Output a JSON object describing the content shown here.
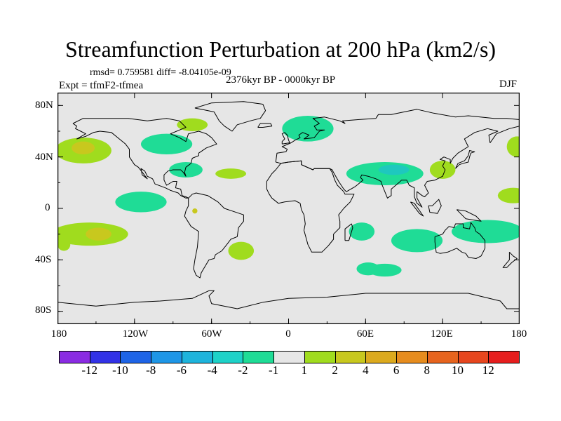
{
  "title": "Streamfunction Perturbation at 200 hPa (km2/s)",
  "stats": "rmsd= 0.759581 diff= -8.04105e-09",
  "experiment": "Expt = tfmF2-tfmea",
  "period": "2376kyr BP - 0000kyr BP",
  "season": "DJF",
  "lat_labels": [
    "80N",
    "40N",
    "0",
    "40S",
    "80S"
  ],
  "lon_labels": [
    "180",
    "120W",
    "60W",
    "0",
    "60E",
    "120E",
    "180"
  ],
  "colors": {
    "background": "#e6e6e6",
    "coast": "#000000",
    "neg1": "#1fdc96",
    "neg2": "#1ec8be",
    "pos1": "#a0dc1e",
    "pos2": "#c8c81e"
  },
  "colorbar": {
    "colors": [
      "#8a2be2",
      "#3232e6",
      "#1e64e6",
      "#1e96e6",
      "#1eb4dc",
      "#1ed2c8",
      "#1fdc96",
      "#e6e6e6",
      "#a0dc1e",
      "#c8c81e",
      "#dcaa1e",
      "#e68c1e",
      "#e6641e",
      "#e6461e",
      "#e61e1e"
    ],
    "labels": [
      "-12",
      "-10",
      "-8",
      "-6",
      "-4",
      "-2",
      "-1",
      "1",
      "2",
      "4",
      "6",
      "8",
      "10",
      "12"
    ]
  },
  "anomalies": [
    {
      "lon": -160,
      "lat": 45,
      "rx": 22,
      "ry": 10,
      "level": 2
    },
    {
      "lon": -160,
      "lat": 47,
      "rx": 9,
      "ry": 5,
      "level": 4
    },
    {
      "lon": -95,
      "lat": 50,
      "rx": 20,
      "ry": 8,
      "level": -1
    },
    {
      "lon": -75,
      "lat": 65,
      "rx": 12,
      "ry": 5,
      "level": 2
    },
    {
      "lon": -80,
      "lat": 30,
      "rx": 13,
      "ry": 6,
      "level": -1
    },
    {
      "lon": -45,
      "lat": 27,
      "rx": 12,
      "ry": 4,
      "level": 2
    },
    {
      "lon": 15,
      "lat": 62,
      "rx": 20,
      "ry": 10,
      "level": -1
    },
    {
      "lon": 75,
      "lat": 27,
      "rx": 30,
      "ry": 9,
      "level": -1
    },
    {
      "lon": 82,
      "lat": 30,
      "rx": 12,
      "ry": 4,
      "level": -2
    },
    {
      "lon": 120,
      "lat": 30,
      "rx": 10,
      "ry": 7,
      "level": 2
    },
    {
      "lon": 178,
      "lat": 48,
      "rx": 8,
      "ry": 8,
      "level": 2
    },
    {
      "lon": 175,
      "lat": 10,
      "rx": 12,
      "ry": 6,
      "level": 2
    },
    {
      "lon": -115,
      "lat": 5,
      "rx": 20,
      "ry": 8,
      "level": -1
    },
    {
      "lon": -155,
      "lat": -20,
      "rx": 30,
      "ry": 9,
      "level": 2
    },
    {
      "lon": -148,
      "lat": -20,
      "rx": 10,
      "ry": 5,
      "level": 4
    },
    {
      "lon": -175,
      "lat": -28,
      "rx": 5,
      "ry": 5,
      "level": 2
    },
    {
      "lon": -37,
      "lat": -33,
      "rx": 10,
      "ry": 7,
      "level": 2
    },
    {
      "lon": 57,
      "lat": -18,
      "rx": 10,
      "ry": 7,
      "level": -1
    },
    {
      "lon": 100,
      "lat": -25,
      "rx": 20,
      "ry": 9,
      "level": -1
    },
    {
      "lon": 155,
      "lat": -18,
      "rx": 28,
      "ry": 9,
      "level": -1
    },
    {
      "lon": 62,
      "lat": -47,
      "rx": 9,
      "ry": 5,
      "level": -1
    },
    {
      "lon": 75,
      "lat": -48,
      "rx": 13,
      "ry": 5,
      "level": -1
    },
    {
      "lon": -73,
      "lat": -2,
      "rx": 2,
      "ry": 2,
      "level": 4
    }
  ],
  "coastlines": [
    [
      [
        -168,
        66
      ],
      [
        -160,
        70
      ],
      [
        -140,
        70
      ],
      [
        -125,
        70
      ],
      [
        -110,
        68
      ],
      [
        -95,
        70
      ],
      [
        -85,
        68
      ],
      [
        -80,
        63
      ],
      [
        -92,
        58
      ],
      [
        -85,
        55
      ],
      [
        -80,
        52
      ],
      [
        -78,
        58
      ],
      [
        -70,
        60
      ],
      [
        -64,
        58
      ],
      [
        -60,
        55
      ],
      [
        -56,
        50
      ],
      [
        -64,
        47
      ],
      [
        -70,
        43
      ],
      [
        -70,
        41
      ],
      [
        -75,
        39
      ],
      [
        -76,
        35
      ],
      [
        -80,
        32
      ],
      [
        -81,
        28
      ],
      [
        -80,
        25
      ],
      [
        -82,
        28
      ],
      [
        -84,
        30
      ],
      [
        -90,
        30
      ],
      [
        -94,
        29
      ],
      [
        -97,
        26
      ],
      [
        -97,
        22
      ],
      [
        -95,
        18
      ],
      [
        -90,
        21
      ],
      [
        -87,
        21
      ],
      [
        -88,
        16
      ],
      [
        -84,
        15
      ],
      [
        -83,
        10
      ],
      [
        -80,
        9
      ],
      [
        -78,
        8
      ],
      [
        -80,
        8
      ],
      [
        -84,
        10
      ],
      [
        -86,
        12
      ],
      [
        -92,
        14
      ],
      [
        -96,
        16
      ],
      [
        -104,
        19
      ],
      [
        -106,
        23
      ],
      [
        -110,
        25
      ],
      [
        -112,
        29
      ],
      [
        -115,
        31
      ],
      [
        -114,
        26
      ],
      [
        -110,
        23
      ],
      [
        -117,
        32
      ],
      [
        -120,
        34
      ],
      [
        -124,
        40
      ],
      [
        -124,
        46
      ],
      [
        -127,
        50
      ],
      [
        -133,
        55
      ],
      [
        -138,
        59
      ],
      [
        -147,
        60
      ],
      [
        -152,
        59
      ],
      [
        -158,
        56
      ],
      [
        -165,
        54
      ],
      [
        -158,
        58
      ],
      [
        -162,
        60
      ],
      [
        -166,
        62
      ],
      [
        -165,
        64
      ],
      [
        -168,
        66
      ]
    ],
    [
      [
        -73,
        78
      ],
      [
        -60,
        82
      ],
      [
        -35,
        83
      ],
      [
        -20,
        81
      ],
      [
        -18,
        76
      ],
      [
        -22,
        70
      ],
      [
        -30,
        68
      ],
      [
        -40,
        65
      ],
      [
        -44,
        60
      ],
      [
        -50,
        64
      ],
      [
        -54,
        68
      ],
      [
        -58,
        75
      ],
      [
        -68,
        77
      ],
      [
        -73,
        78
      ]
    ],
    [
      [
        -78,
        8
      ],
      [
        -75,
        11
      ],
      [
        -72,
        12
      ],
      [
        -63,
        10
      ],
      [
        -55,
        5
      ],
      [
        -50,
        0
      ],
      [
        -44,
        -2
      ],
      [
        -35,
        -5
      ],
      [
        -35,
        -10
      ],
      [
        -39,
        -15
      ],
      [
        -40,
        -22
      ],
      [
        -45,
        -24
      ],
      [
        -48,
        -28
      ],
      [
        -52,
        -33
      ],
      [
        -57,
        -36
      ],
      [
        -58,
        -39
      ],
      [
        -62,
        -40
      ],
      [
        -65,
        -45
      ],
      [
        -68,
        -50
      ],
      [
        -69,
        -54
      ],
      [
        -72,
        -52
      ],
      [
        -74,
        -47
      ],
      [
        -73,
        -40
      ],
      [
        -71,
        -30
      ],
      [
        -70,
        -18
      ],
      [
        -76,
        -14
      ],
      [
        -81,
        -6
      ],
      [
        -80,
        -2
      ],
      [
        -78,
        2
      ],
      [
        -78,
        8
      ]
    ],
    [
      [
        -10,
        36
      ],
      [
        -9,
        43
      ],
      [
        -2,
        44
      ],
      [
        -1,
        46
      ],
      [
        -5,
        48
      ],
      [
        2,
        51
      ],
      [
        5,
        53
      ],
      [
        9,
        55
      ],
      [
        8,
        57
      ],
      [
        11,
        59
      ],
      [
        16,
        57
      ],
      [
        12,
        54
      ],
      [
        20,
        55
      ],
      [
        24,
        60
      ],
      [
        28,
        61
      ],
      [
        22,
        61
      ],
      [
        20,
        64
      ],
      [
        24,
        66
      ],
      [
        19,
        70
      ],
      [
        28,
        71
      ],
      [
        40,
        68
      ],
      [
        44,
        66
      ],
      [
        42,
        68
      ],
      [
        54,
        69
      ],
      [
        68,
        70
      ],
      [
        70,
        73
      ],
      [
        80,
        73
      ],
      [
        100,
        77
      ],
      [
        113,
        74
      ],
      [
        130,
        71
      ],
      [
        140,
        72
      ],
      [
        160,
        70
      ],
      [
        170,
        70
      ],
      [
        180,
        69
      ],
      [
        180,
        64
      ],
      [
        172,
        62
      ],
      [
        162,
        58
      ],
      [
        157,
        51
      ],
      [
        156,
        57
      ],
      [
        163,
        60
      ],
      [
        155,
        62
      ],
      [
        145,
        59
      ],
      [
        137,
        54
      ],
      [
        140,
        48
      ],
      [
        132,
        43
      ],
      [
        128,
        39
      ],
      [
        126,
        35
      ],
      [
        126,
        38
      ],
      [
        121,
        40
      ],
      [
        118,
        38
      ],
      [
        122,
        37
      ],
      [
        120,
        33
      ],
      [
        122,
        30
      ],
      [
        120,
        25
      ],
      [
        114,
        22
      ],
      [
        108,
        21
      ],
      [
        106,
        18
      ],
      [
        109,
        12
      ],
      [
        106,
        9
      ],
      [
        104,
        10
      ],
      [
        100,
        13
      ],
      [
        100,
        8
      ],
      [
        104,
        1
      ],
      [
        100,
        4
      ],
      [
        98,
        9
      ],
      [
        98,
        16
      ],
      [
        94,
        18
      ],
      [
        92,
        22
      ],
      [
        88,
        22
      ],
      [
        86,
        20
      ],
      [
        80,
        15
      ],
      [
        80,
        10
      ],
      [
        77,
        8
      ],
      [
        73,
        18
      ],
      [
        72,
        21
      ],
      [
        68,
        23
      ],
      [
        62,
        25
      ],
      [
        57,
        26
      ],
      [
        56,
        24
      ],
      [
        58,
        22
      ],
      [
        52,
        17
      ],
      [
        45,
        13
      ],
      [
        43,
        15
      ],
      [
        39,
        21
      ],
      [
        35,
        28
      ],
      [
        34,
        30
      ],
      [
        32,
        31
      ],
      [
        30,
        31
      ],
      [
        20,
        31
      ],
      [
        19,
        30
      ],
      [
        10,
        34
      ],
      [
        10,
        37
      ],
      [
        0,
        36
      ],
      [
        -6,
        35
      ],
      [
        -10,
        36
      ]
    ],
    [
      [
        -6,
        35
      ],
      [
        -10,
        30
      ],
      [
        -13,
        27
      ],
      [
        -17,
        21
      ],
      [
        -17,
        15
      ],
      [
        -15,
        11
      ],
      [
        -13,
        8
      ],
      [
        -8,
        4
      ],
      [
        -3,
        5
      ],
      [
        5,
        6
      ],
      [
        9,
        4
      ],
      [
        10,
        -1
      ],
      [
        12,
        -5
      ],
      [
        13,
        -12
      ],
      [
        12,
        -17
      ],
      [
        15,
        -28
      ],
      [
        18,
        -34
      ],
      [
        22,
        -34
      ],
      [
        26,
        -34
      ],
      [
        31,
        -29
      ],
      [
        35,
        -24
      ],
      [
        35,
        -20
      ],
      [
        40,
        -15
      ],
      [
        40,
        -10
      ],
      [
        39,
        -5
      ],
      [
        43,
        0
      ],
      [
        48,
        5
      ],
      [
        51,
        11
      ],
      [
        44,
        11
      ],
      [
        43,
        13
      ],
      [
        38,
        18
      ],
      [
        36,
        22
      ],
      [
        34,
        28
      ],
      [
        32,
        31
      ],
      [
        30,
        31
      ],
      [
        20,
        31
      ],
      [
        19,
        30
      ],
      [
        10,
        34
      ],
      [
        10,
        37
      ],
      [
        0,
        36
      ],
      [
        -6,
        35
      ]
    ],
    [
      [
        44,
        -25
      ],
      [
        47,
        -25
      ],
      [
        50,
        -15
      ],
      [
        49,
        -12
      ],
      [
        44,
        -16
      ],
      [
        44,
        -25
      ]
    ],
    [
      [
        114,
        -22
      ],
      [
        114,
        -26
      ],
      [
        115,
        -34
      ],
      [
        118,
        -35
      ],
      [
        124,
        -34
      ],
      [
        131,
        -31
      ],
      [
        135,
        -34
      ],
      [
        138,
        -35
      ],
      [
        140,
        -38
      ],
      [
        146,
        -39
      ],
      [
        150,
        -37
      ],
      [
        153,
        -31
      ],
      [
        153,
        -25
      ],
      [
        149,
        -20
      ],
      [
        146,
        -18
      ],
      [
        145,
        -15
      ],
      [
        142,
        -11
      ],
      [
        141,
        -16
      ],
      [
        136,
        -15
      ],
      [
        136,
        -12
      ],
      [
        130,
        -12
      ],
      [
        129,
        -15
      ],
      [
        125,
        -14
      ],
      [
        122,
        -17
      ],
      [
        120,
        -20
      ],
      [
        114,
        -22
      ]
    ],
    [
      [
        -5,
        50
      ],
      [
        -5,
        52
      ],
      [
        -3,
        54
      ],
      [
        -5,
        58
      ],
      [
        -3,
        59
      ],
      [
        -1,
        57
      ],
      [
        0,
        53
      ],
      [
        1,
        51
      ],
      [
        -5,
        50
      ]
    ],
    [
      [
        130,
        31
      ],
      [
        133,
        34
      ],
      [
        136,
        35
      ],
      [
        140,
        36
      ],
      [
        141,
        40
      ],
      [
        142,
        43
      ],
      [
        145,
        44
      ],
      [
        141,
        45
      ],
      [
        140,
        41
      ],
      [
        137,
        37
      ],
      [
        132,
        35
      ],
      [
        130,
        31
      ]
    ],
    [
      [
        -180,
        -73
      ],
      [
        -150,
        -76
      ],
      [
        -120,
        -73
      ],
      [
        -100,
        -72
      ],
      [
        -75,
        -70
      ],
      [
        -62,
        -64
      ],
      [
        -58,
        -64
      ],
      [
        -62,
        -68
      ],
      [
        -60,
        -74
      ],
      [
        -40,
        -78
      ],
      [
        -20,
        -73
      ],
      [
        0,
        -70
      ],
      [
        30,
        -69
      ],
      [
        60,
        -66
      ],
      [
        90,
        -66
      ],
      [
        120,
        -66
      ],
      [
        140,
        -66
      ],
      [
        165,
        -72
      ],
      [
        170,
        -78
      ],
      [
        180,
        -78
      ]
    ],
    [
      [
        -24,
        63
      ],
      [
        -22,
        66
      ],
      [
        -14,
        66
      ],
      [
        -13,
        64
      ],
      [
        -20,
        63
      ],
      [
        -24,
        63
      ]
    ],
    [
      [
        95,
        5
      ],
      [
        98,
        4
      ],
      [
        105,
        -6
      ],
      [
        102,
        -4
      ],
      [
        95,
        5
      ]
    ],
    [
      [
        109,
        2
      ],
      [
        110,
        -3
      ],
      [
        116,
        -4
      ],
      [
        119,
        2
      ],
      [
        117,
        7
      ],
      [
        112,
        2
      ],
      [
        109,
        2
      ]
    ],
    [
      [
        131,
        -1
      ],
      [
        138,
        -2
      ],
      [
        146,
        -6
      ],
      [
        150,
        -10
      ],
      [
        144,
        -9
      ],
      [
        138,
        -8
      ],
      [
        131,
        -1
      ]
    ],
    [
      [
        172,
        -34
      ],
      [
        175,
        -37
      ],
      [
        178,
        -39
      ],
      [
        174,
        -42
      ],
      [
        170,
        -46
      ],
      [
        167,
        -46
      ],
      [
        172,
        -40
      ],
      [
        172,
        -34
      ]
    ]
  ]
}
